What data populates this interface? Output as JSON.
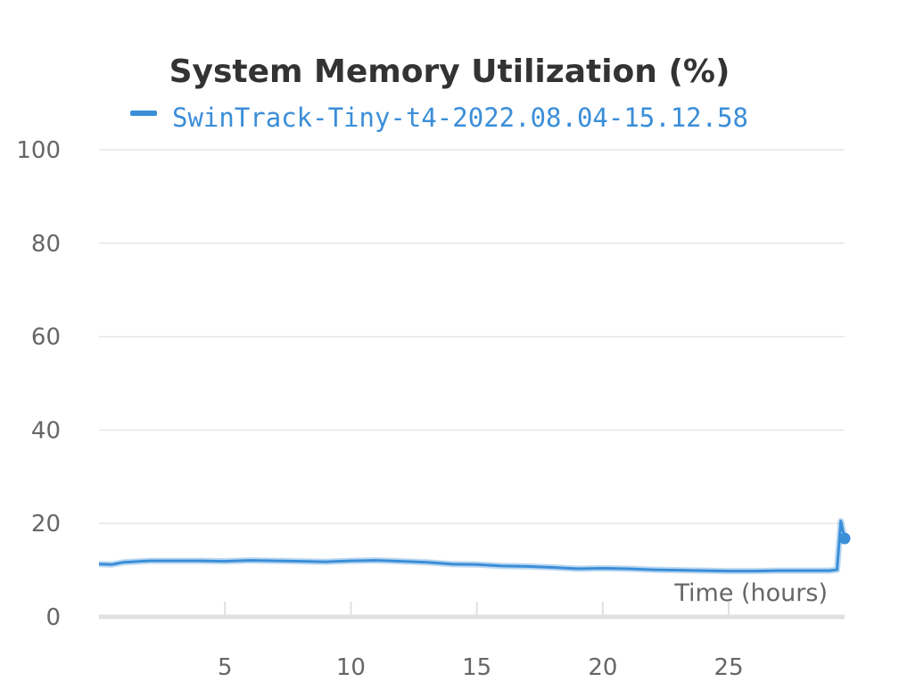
{
  "chart_data": {
    "type": "line",
    "title": "System Memory Utilization (%)",
    "xlabel": "Time (hours)",
    "ylabel": "",
    "xlim": [
      0,
      29.6
    ],
    "ylim": [
      0,
      100
    ],
    "x_ticks": [
      5,
      10,
      15,
      20,
      25
    ],
    "y_ticks": [
      0,
      20,
      40,
      60,
      80,
      100
    ],
    "grid": "horizontal",
    "legend_position": "top",
    "series_color": "#3b8ed8",
    "grid_color": "#e6e6e6",
    "axis_color": "#e0e0e0",
    "title_color": "#333333",
    "tick_color": "#666666",
    "series": [
      {
        "name": "SwinTrack-Tiny-t4-2022.08.04-15.12.58",
        "x": [
          0.0,
          0.5,
          1.0,
          2.0,
          3.0,
          4.0,
          5.0,
          6.0,
          7.0,
          8.0,
          9.0,
          10.0,
          11.0,
          12.0,
          13.0,
          14.0,
          15.0,
          16.0,
          17.0,
          18.0,
          19.0,
          20.0,
          21.0,
          22.0,
          23.0,
          24.0,
          25.0,
          26.0,
          27.0,
          28.0,
          29.0,
          29.3,
          29.45,
          29.55,
          29.6
        ],
        "y": [
          11.3,
          11.2,
          11.7,
          12.0,
          12.0,
          12.0,
          11.9,
          12.1,
          12.0,
          11.9,
          11.8,
          12.0,
          12.1,
          11.9,
          11.7,
          11.3,
          11.2,
          10.9,
          10.8,
          10.6,
          10.3,
          10.4,
          10.3,
          10.1,
          10.0,
          9.9,
          9.8,
          9.8,
          9.9,
          9.9,
          9.9,
          10.1,
          20.5,
          18.0,
          16.8
        ]
      }
    ]
  }
}
